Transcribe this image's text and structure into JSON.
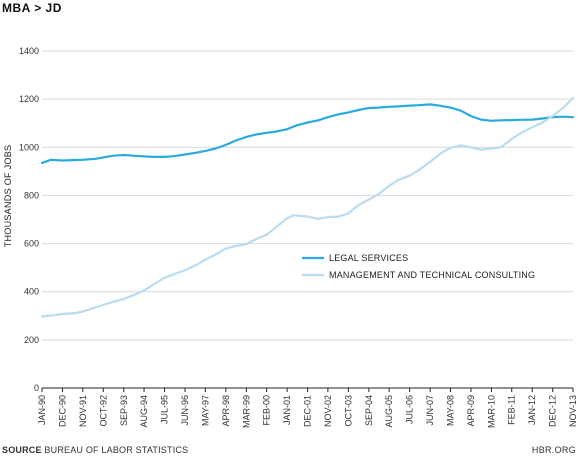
{
  "header": {
    "title": "MBA > JD"
  },
  "footer": {
    "source_label": "SOURCE",
    "source_text": "BUREAU OF LABOR STATISTICS",
    "credit": "HBR.ORG"
  },
  "colors": {
    "legal": "#29ABE2",
    "consulting": "#B9DCEF",
    "grid": "#D9D9D9",
    "axis": "#222222"
  },
  "chart_data": {
    "type": "line",
    "title": "MBA > JD",
    "ylabel": "THOUSANDS OF JOBS",
    "ylim": [
      0,
      1400
    ],
    "yticks": [
      0,
      200,
      400,
      600,
      800,
      1000,
      1200,
      1400
    ],
    "xlim": [
      1990.0,
      2013.83
    ],
    "xticks": [
      {
        "label": "JAN-90",
        "x": 1990.0
      },
      {
        "label": "DEC-90",
        "x": 1990.92
      },
      {
        "label": "NOV-91",
        "x": 1991.83
      },
      {
        "label": "OCT-92",
        "x": 1992.75
      },
      {
        "label": "SEP-93",
        "x": 1993.67
      },
      {
        "label": "AUG-94",
        "x": 1994.58
      },
      {
        "label": "JUL-95",
        "x": 1995.5
      },
      {
        "label": "JUN-96",
        "x": 1996.42
      },
      {
        "label": "MAY-97",
        "x": 1997.33
      },
      {
        "label": "APR-98",
        "x": 1998.25
      },
      {
        "label": "MAR-99",
        "x": 1999.17
      },
      {
        "label": "FEB-00",
        "x": 2000.08
      },
      {
        "label": "JAN-01",
        "x": 2001.0
      },
      {
        "label": "DEC-01",
        "x": 2001.92
      },
      {
        "label": "NOV-02",
        "x": 2002.83
      },
      {
        "label": "OCT-03",
        "x": 2003.75
      },
      {
        "label": "SEP-04",
        "x": 2004.67
      },
      {
        "label": "AUG-05",
        "x": 2005.58
      },
      {
        "label": "JUL-06",
        "x": 2006.5
      },
      {
        "label": "JUN-07",
        "x": 2007.42
      },
      {
        "label": "MAY-08",
        "x": 2008.33
      },
      {
        "label": "APR-09",
        "x": 2009.25
      },
      {
        "label": "MAR-10",
        "x": 2010.17
      },
      {
        "label": "FEB-11",
        "x": 2011.08
      },
      {
        "label": "JAN-12",
        "x": 2012.0
      },
      {
        "label": "DEC-12",
        "x": 2012.92
      },
      {
        "label": "NOV-13",
        "x": 2013.83
      }
    ],
    "grid": true,
    "legend_position": "center-right",
    "series": [
      {
        "name": "LEGAL SERVICES",
        "color": "#29ABE2",
        "points": [
          [
            1990.0,
            935
          ],
          [
            1990.4,
            948
          ],
          [
            1990.92,
            945
          ],
          [
            1991.5,
            947
          ],
          [
            1991.83,
            948
          ],
          [
            1992.4,
            952
          ],
          [
            1992.75,
            958
          ],
          [
            1993.2,
            965
          ],
          [
            1993.67,
            968
          ],
          [
            1994.1,
            965
          ],
          [
            1994.58,
            962
          ],
          [
            1995.0,
            960
          ],
          [
            1995.5,
            960
          ],
          [
            1995.9,
            963
          ],
          [
            1996.42,
            970
          ],
          [
            1996.9,
            977
          ],
          [
            1997.33,
            985
          ],
          [
            1997.8,
            995
          ],
          [
            1998.25,
            1010
          ],
          [
            1998.7,
            1028
          ],
          [
            1999.17,
            1043
          ],
          [
            1999.6,
            1053
          ],
          [
            2000.08,
            1060
          ],
          [
            2000.5,
            1065
          ],
          [
            2001.0,
            1075
          ],
          [
            2001.4,
            1090
          ],
          [
            2001.92,
            1103
          ],
          [
            2002.4,
            1112
          ],
          [
            2002.83,
            1125
          ],
          [
            2003.3,
            1137
          ],
          [
            2003.75,
            1145
          ],
          [
            2004.2,
            1155
          ],
          [
            2004.67,
            1163
          ],
          [
            2005.1,
            1165
          ],
          [
            2005.58,
            1168
          ],
          [
            2006.0,
            1170
          ],
          [
            2006.5,
            1173
          ],
          [
            2006.9,
            1175
          ],
          [
            2007.42,
            1178
          ],
          [
            2007.9,
            1172
          ],
          [
            2008.33,
            1165
          ],
          [
            2008.8,
            1152
          ],
          [
            2009.25,
            1130
          ],
          [
            2009.7,
            1115
          ],
          [
            2010.17,
            1110
          ],
          [
            2010.6,
            1112
          ],
          [
            2011.08,
            1113
          ],
          [
            2011.5,
            1114
          ],
          [
            2012.0,
            1115
          ],
          [
            2012.5,
            1120
          ],
          [
            2012.92,
            1125
          ],
          [
            2013.4,
            1127
          ],
          [
            2013.83,
            1125
          ]
        ]
      },
      {
        "name": "MANAGEMENT AND TECHNICAL CONSULTING",
        "color": "#B9DCEF",
        "points": [
          [
            1990.0,
            297
          ],
          [
            1990.5,
            302
          ],
          [
            1990.92,
            308
          ],
          [
            1991.4,
            310
          ],
          [
            1991.83,
            318
          ],
          [
            1992.3,
            332
          ],
          [
            1992.75,
            345
          ],
          [
            1993.2,
            358
          ],
          [
            1993.67,
            370
          ],
          [
            1994.1,
            385
          ],
          [
            1994.58,
            405
          ],
          [
            1995.0,
            430
          ],
          [
            1995.5,
            458
          ],
          [
            1995.9,
            472
          ],
          [
            1996.42,
            490
          ],
          [
            1996.9,
            510
          ],
          [
            1997.33,
            533
          ],
          [
            1997.8,
            555
          ],
          [
            1998.25,
            580
          ],
          [
            1998.7,
            590
          ],
          [
            1999.17,
            598
          ],
          [
            1999.6,
            618
          ],
          [
            2000.08,
            637
          ],
          [
            2000.5,
            668
          ],
          [
            2001.0,
            705
          ],
          [
            2001.3,
            718
          ],
          [
            2001.92,
            712
          ],
          [
            2002.4,
            703
          ],
          [
            2002.83,
            710
          ],
          [
            2003.3,
            712
          ],
          [
            2003.75,
            725
          ],
          [
            2004.2,
            760
          ],
          [
            2004.67,
            783
          ],
          [
            2005.1,
            805
          ],
          [
            2005.58,
            840
          ],
          [
            2006.0,
            865
          ],
          [
            2006.5,
            882
          ],
          [
            2006.9,
            905
          ],
          [
            2007.42,
            940
          ],
          [
            2007.9,
            975
          ],
          [
            2008.33,
            998
          ],
          [
            2008.8,
            1008
          ],
          [
            2009.25,
            1000
          ],
          [
            2009.7,
            990
          ],
          [
            2010.17,
            995
          ],
          [
            2010.6,
            1000
          ],
          [
            2011.08,
            1035
          ],
          [
            2011.5,
            1060
          ],
          [
            2012.0,
            1083
          ],
          [
            2012.5,
            1105
          ],
          [
            2012.92,
            1130
          ],
          [
            2013.4,
            1165
          ],
          [
            2013.83,
            1205
          ]
        ]
      }
    ]
  }
}
